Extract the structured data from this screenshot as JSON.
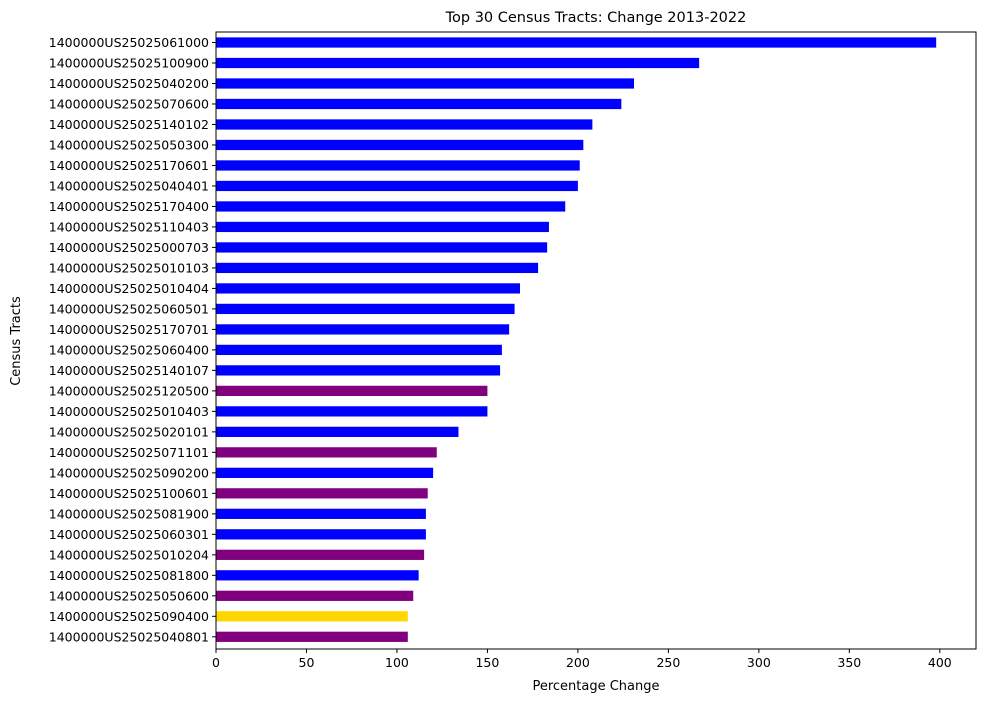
{
  "chart_data": {
    "type": "bar",
    "orientation": "horizontal",
    "title": "Top 30 Census Tracts: Change 2013-2022",
    "xlabel": "Percentage Change",
    "ylabel": "Census Tracts",
    "xlim": [
      0,
      420
    ],
    "xticks": [
      0,
      50,
      100,
      150,
      200,
      250,
      300,
      350,
      400
    ],
    "grid": false,
    "legend": "none",
    "colors": {
      "blue": "#0000ff",
      "purple": "#800080",
      "gold": "#ffd700"
    },
    "bars": [
      {
        "label": "1400000US25025061000",
        "value": 398,
        "color": "blue"
      },
      {
        "label": "1400000US25025100900",
        "value": 267,
        "color": "blue"
      },
      {
        "label": "1400000US25025040200",
        "value": 231,
        "color": "blue"
      },
      {
        "label": "1400000US25025070600",
        "value": 224,
        "color": "blue"
      },
      {
        "label": "1400000US25025140102",
        "value": 208,
        "color": "blue"
      },
      {
        "label": "1400000US25025050300",
        "value": 203,
        "color": "blue"
      },
      {
        "label": "1400000US25025170601",
        "value": 201,
        "color": "blue"
      },
      {
        "label": "1400000US25025040401",
        "value": 200,
        "color": "blue"
      },
      {
        "label": "1400000US25025170400",
        "value": 193,
        "color": "blue"
      },
      {
        "label": "1400000US25025110403",
        "value": 184,
        "color": "blue"
      },
      {
        "label": "1400000US25025000703",
        "value": 183,
        "color": "blue"
      },
      {
        "label": "1400000US25025010103",
        "value": 178,
        "color": "blue"
      },
      {
        "label": "1400000US25025010404",
        "value": 168,
        "color": "blue"
      },
      {
        "label": "1400000US25025060501",
        "value": 165,
        "color": "blue"
      },
      {
        "label": "1400000US25025170701",
        "value": 162,
        "color": "blue"
      },
      {
        "label": "1400000US25025060400",
        "value": 158,
        "color": "blue"
      },
      {
        "label": "1400000US25025140107",
        "value": 157,
        "color": "blue"
      },
      {
        "label": "1400000US25025120500",
        "value": 150,
        "color": "purple"
      },
      {
        "label": "1400000US25025010403",
        "value": 150,
        "color": "blue"
      },
      {
        "label": "1400000US25025020101",
        "value": 134,
        "color": "blue"
      },
      {
        "label": "1400000US25025071101",
        "value": 122,
        "color": "purple"
      },
      {
        "label": "1400000US25025090200",
        "value": 120,
        "color": "blue"
      },
      {
        "label": "1400000US25025100601",
        "value": 117,
        "color": "purple"
      },
      {
        "label": "1400000US25025081900",
        "value": 116,
        "color": "blue"
      },
      {
        "label": "1400000US25025060301",
        "value": 116,
        "color": "blue"
      },
      {
        "label": "1400000US25025010204",
        "value": 115,
        "color": "purple"
      },
      {
        "label": "1400000US25025081800",
        "value": 112,
        "color": "blue"
      },
      {
        "label": "1400000US25025050600",
        "value": 109,
        "color": "purple"
      },
      {
        "label": "1400000US25025090400",
        "value": 106,
        "color": "gold"
      },
      {
        "label": "1400000US25025040801",
        "value": 106,
        "color": "purple"
      }
    ]
  }
}
